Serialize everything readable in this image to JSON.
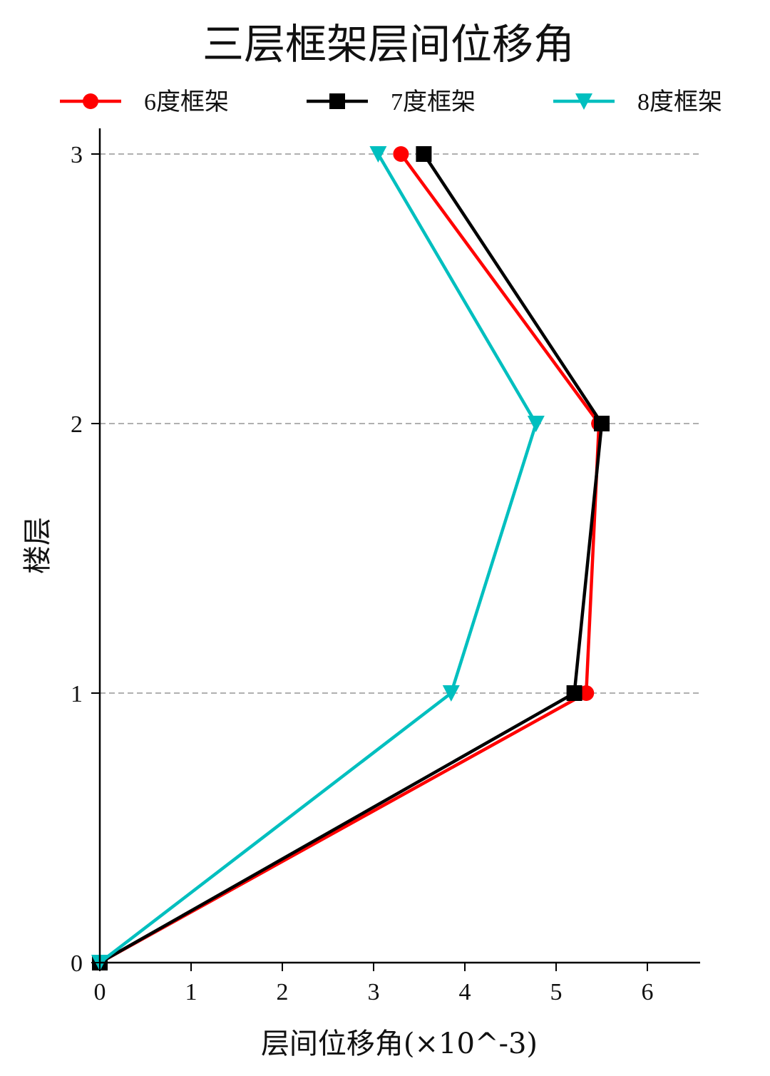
{
  "chart_data": {
    "type": "line",
    "title": "三层框架层间位移角",
    "xlabel": "层间位移角(×10^-3)",
    "ylabel": "楼层",
    "xlim": [
      0,
      6.6
    ],
    "ylim": [
      0,
      3.1
    ],
    "xticks": [
      0,
      1,
      2,
      3,
      4,
      5,
      6
    ],
    "yticks": [
      0,
      1,
      2,
      3
    ],
    "grid": "horizontal dashed at y ticks 1, 2, 3",
    "legend": "top, horizontal",
    "series": [
      {
        "name": "6度框架",
        "color": "#ff0000",
        "marker": "circle",
        "x": [
          0.0,
          5.33,
          5.47,
          3.3
        ],
        "y": [
          0,
          1,
          2,
          3
        ]
      },
      {
        "name": "7度框架",
        "color": "#000000",
        "marker": "square",
        "x": [
          0.0,
          5.2,
          5.5,
          3.55
        ],
        "y": [
          0,
          1,
          2,
          3
        ]
      },
      {
        "name": "8度框架",
        "color": "#00bfbf",
        "marker": "triangle-down",
        "x": [
          0.0,
          3.85,
          4.78,
          3.05
        ],
        "y": [
          0,
          1,
          2,
          3
        ]
      }
    ]
  }
}
